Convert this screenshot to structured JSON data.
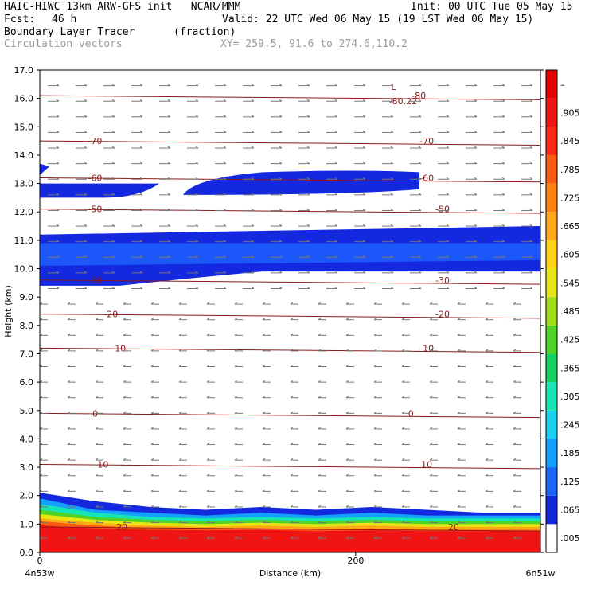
{
  "header": {
    "line1_left": "HAIC-HIWC 13km ARW-GFS init   NCAR/MMM",
    "line1_right": "Init: 00 UTC Tue 05 May 15",
    "fcst_label": "Fcst:",
    "fcst_value": "46 h",
    "valid": "Valid: 22 UTC Wed 06 May 15 (19 LST Wed 06 May 15)",
    "field_name": "Boundary Layer Tracer",
    "field_units": "(fraction)",
    "vector_label": "Circulation vectors",
    "xy_range": "XY= 259.5, 91.6 to 274.6,110.2"
  },
  "chart_data": {
    "type": "heatmap",
    "ylabel": "Height (km)",
    "xlabel": "Distance (km)",
    "x_range": [
      0,
      317
    ],
    "y_range": [
      0,
      17
    ],
    "y_ticks": [
      "0.0",
      "1.0",
      "2.0",
      "3.0",
      "4.0",
      "5.0",
      "6.0",
      "7.0",
      "8.0",
      "9.0",
      "10.0",
      "11.0",
      "12.0",
      "13.0",
      "14.0",
      "15.0",
      "16.0",
      "17.0"
    ],
    "x_ticks": [
      "0",
      "200"
    ],
    "x_tick_values": [
      0,
      200
    ],
    "x_left_label": "4n53w",
    "x_right_label": "6n51w",
    "colorbar": {
      "labels": [
        ".005",
        ".065",
        ".125",
        ".185",
        ".245",
        ".305",
        ".365",
        ".425",
        ".485",
        ".545",
        ".605",
        ".665",
        ".725",
        ".785",
        ".845",
        ".905",
        "–"
      ],
      "colors": [
        "#ffffff",
        "#1428e0",
        "#1e64ff",
        "#14a0ff",
        "#14d2f0",
        "#14e6b4",
        "#14d264",
        "#50d228",
        "#a0dc14",
        "#e6e614",
        "#ffd214",
        "#ffaa14",
        "#ff8214",
        "#ff5a14",
        "#ff2814",
        "#f01414",
        "#e60000"
      ]
    },
    "temperature_contours": [
      {
        "value": 10,
        "label": "10",
        "label_x": [
          40,
          245
        ]
      },
      {
        "value": 0,
        "label": "0",
        "label_x": [
          35,
          235
        ]
      },
      {
        "value": -10,
        "label": "-10",
        "label_x": [
          50,
          245
        ]
      },
      {
        "value": -20,
        "label": "-20",
        "label_x": [
          45,
          255
        ]
      },
      {
        "value": -30,
        "label": "-30",
        "label_x": [
          35,
          255
        ]
      },
      {
        "value": -50,
        "label": "-50",
        "label_x": [
          35,
          255
        ]
      },
      {
        "value": -60,
        "label": "-60",
        "label_x": [
          35,
          245
        ]
      },
      {
        "value": -70,
        "label": "-70",
        "label_x": [
          35,
          245
        ]
      },
      {
        "value": -80,
        "label": "-80",
        "label_x": [
          240
        ]
      },
      {
        "value": 20,
        "label": "20",
        "label_x": [
          52,
          262
        ]
      }
    ],
    "contour_heights_km": [
      3.1,
      4.9,
      7.2,
      8.4,
      9.6,
      12.1,
      13.2,
      14.5,
      16.1,
      0.9
    ],
    "min_label": "L",
    "min_value": "-80.22",
    "tracer_layers": [
      {
        "name": "boundary layer",
        "top_km": 1.6,
        "fraction_high": 0.9
      },
      {
        "name": "upper layer 1",
        "bottom_km": 9.4,
        "top_km": 11.2,
        "fraction": 0.1
      },
      {
        "name": "upper layer 2",
        "bottom_km": 12.5,
        "top_km": 13.4,
        "fraction": 0.05
      }
    ]
  }
}
